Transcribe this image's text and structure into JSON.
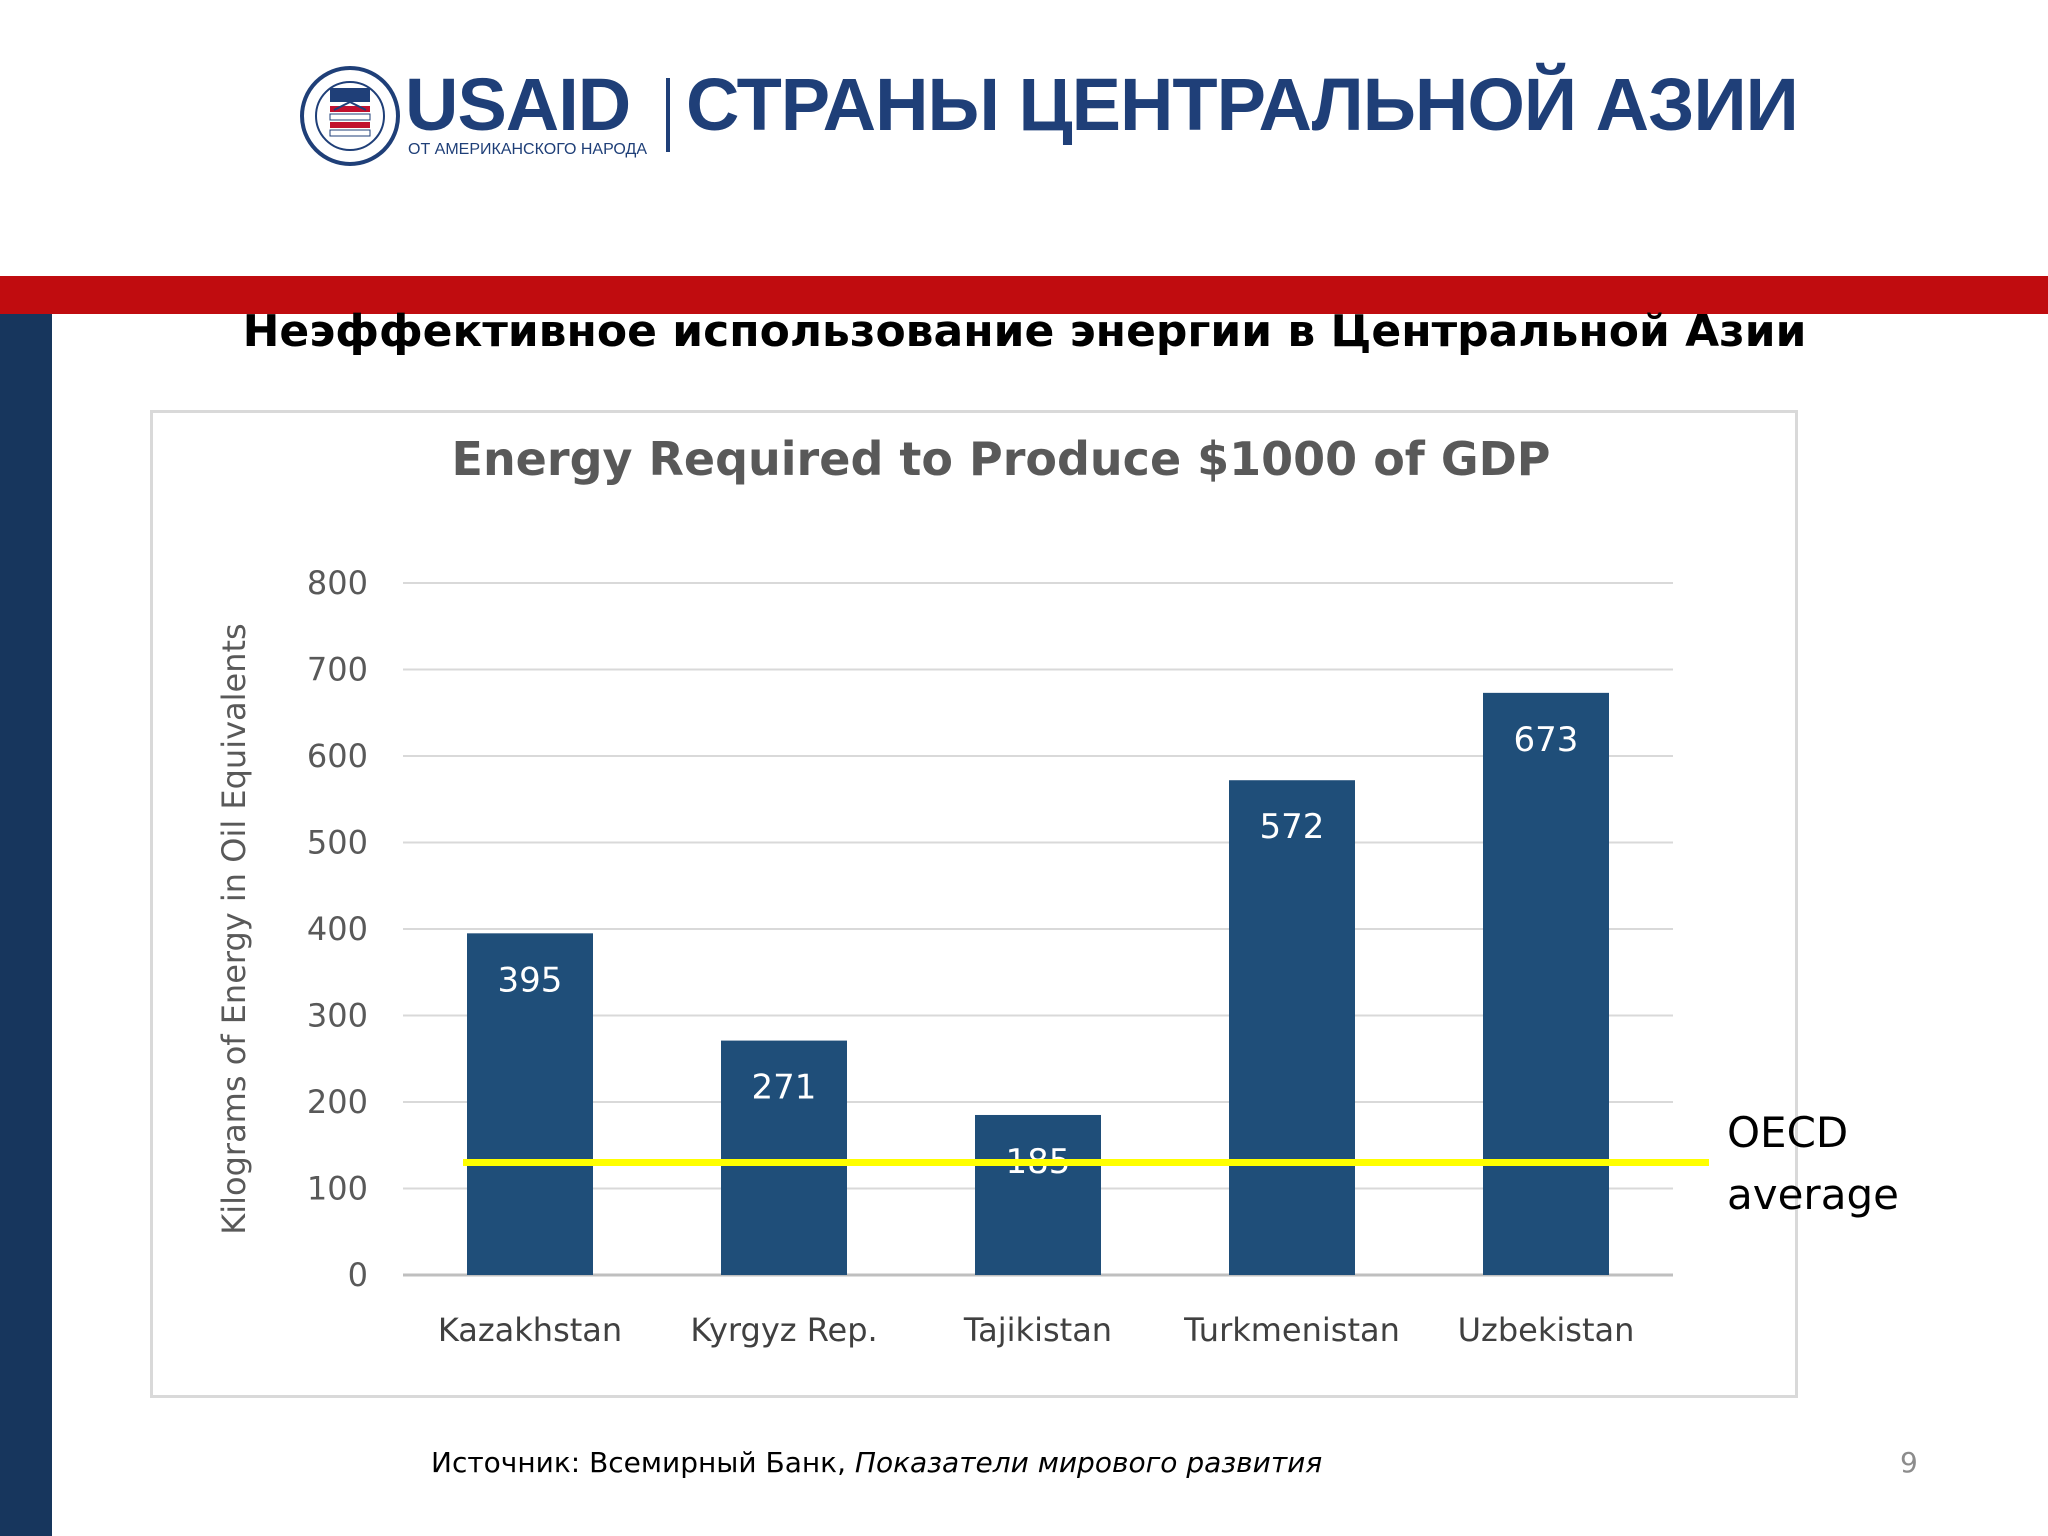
{
  "header": {
    "logo_wordmark_blue": "USAID",
    "logo_tagline": "ОТ АМЕРИКАНСКОГО НАРОДА",
    "region_title": "СТРАНЫ ЦЕНТРАЛЬНОЙ АЗИИ"
  },
  "colors": {
    "brand_blue": "#1f3f78",
    "brand_red": "#c00c0f",
    "side_navy": "#17365d",
    "bar": "#1f4e79",
    "oecd_line": "#ffff00"
  },
  "slide_title": "Неэффективное использование энергии в Центральной Азии",
  "chart_data": {
    "type": "bar",
    "title": "Energy Required to Produce $1000 of GDP",
    "xlabel": "",
    "ylabel": "Kilograms of Energy in Oil Equivalents",
    "categories": [
      "Kazakhstan",
      "Kyrgyz Rep.",
      "Tajikistan",
      "Turkmenistan",
      "Uzbekistan"
    ],
    "values": [
      395,
      271,
      185,
      572,
      673
    ],
    "ylim": [
      0,
      800
    ],
    "yticks": [
      0,
      100,
      200,
      300,
      400,
      500,
      600,
      700,
      800
    ],
    "grid": true,
    "reference_line": {
      "value": 130,
      "label": "OECD average"
    }
  },
  "oecd_label_line1": "OECD",
  "oecd_label_line2": "average",
  "source": {
    "prefix": "Источник: Всемирный Банк, ",
    "italic": "Показатели мирового развития"
  },
  "page_number": "9"
}
